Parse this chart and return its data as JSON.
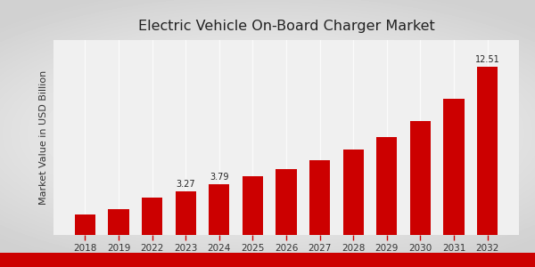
{
  "title": "Electric Vehicle On-Board Charger Market",
  "ylabel": "Market Value in USD Billion",
  "categories": [
    "2018",
    "2019",
    "2022",
    "2023",
    "2024",
    "2025",
    "2026",
    "2027",
    "2028",
    "2029",
    "2030",
    "2031",
    "2032"
  ],
  "values": [
    1.55,
    1.95,
    2.75,
    3.27,
    3.79,
    4.35,
    4.9,
    5.55,
    6.35,
    7.3,
    8.5,
    10.1,
    12.51
  ],
  "bar_color": "#cc0000",
  "bg_color_outer": "#d8d8d8",
  "bg_color_inner": "#f5f5f5",
  "title_fontsize": 11.5,
  "tick_fontsize": 7.5,
  "ylabel_fontsize": 8,
  "annotated_bars": {
    "2023": "3.27",
    "2024": "3.79",
    "2032": "12.51"
  },
  "ylim": [
    0,
    14.5
  ],
  "bottom_strip_color": "#cc0000"
}
